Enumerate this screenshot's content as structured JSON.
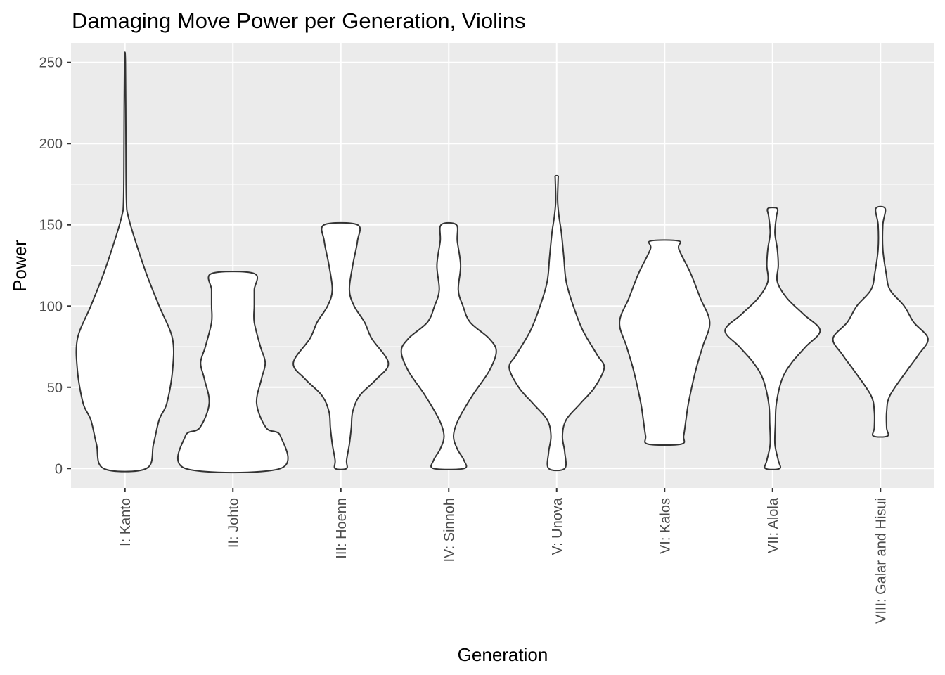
{
  "chart_data": {
    "type": "violin",
    "title": "Damaging Move Power per Generation, Violins",
    "xlabel": "Generation",
    "ylabel": "Power",
    "ylim": [
      -12,
      262
    ],
    "yticks": [
      0,
      50,
      100,
      150,
      200,
      250
    ],
    "grid": true,
    "legend": "none",
    "colors": {
      "panel": "#ebebeb",
      "grid_major": "#ffffff",
      "violin_fill": "#ffffff",
      "violin_stroke": "#333333",
      "tick_text": "#4d4d4d"
    },
    "categories": [
      "I: Kanto",
      "II: Johto",
      "III: Hoenn",
      "IV: Sinnoh",
      "V: Unova",
      "VI: Kalos",
      "VII: Alola",
      "VIII: Galar and Hisui"
    ],
    "violins": [
      {
        "name": "I: Kanto",
        "range": [
          0,
          250
        ],
        "profile": [
          [
            0,
            0.45
          ],
          [
            15,
            0.6
          ],
          [
            30,
            0.72
          ],
          [
            40,
            0.88
          ],
          [
            60,
            1.0
          ],
          [
            80,
            1.0
          ],
          [
            100,
            0.72
          ],
          [
            120,
            0.45
          ],
          [
            140,
            0.22
          ],
          [
            155,
            0.07
          ],
          [
            165,
            0.03
          ],
          [
            200,
            0.02
          ],
          [
            250,
            0.01
          ]
        ]
      },
      {
        "name": "II: Johto",
        "range": [
          0,
          120
        ],
        "profile": [
          [
            0,
            1.0
          ],
          [
            20,
            1.0
          ],
          [
            25,
            0.7
          ],
          [
            40,
            0.5
          ],
          [
            55,
            0.6
          ],
          [
            65,
            0.68
          ],
          [
            75,
            0.58
          ],
          [
            90,
            0.45
          ],
          [
            100,
            0.45
          ],
          [
            110,
            0.45
          ],
          [
            120,
            0.45
          ]
        ]
      },
      {
        "name": "III: Hoenn",
        "range": [
          0,
          150
        ],
        "profile": [
          [
            0,
            0.12
          ],
          [
            5,
            0.12
          ],
          [
            15,
            0.18
          ],
          [
            25,
            0.22
          ],
          [
            35,
            0.25
          ],
          [
            45,
            0.4
          ],
          [
            55,
            0.75
          ],
          [
            65,
            1.0
          ],
          [
            80,
            0.65
          ],
          [
            90,
            0.5
          ],
          [
            100,
            0.28
          ],
          [
            110,
            0.18
          ],
          [
            125,
            0.25
          ],
          [
            140,
            0.35
          ],
          [
            150,
            0.35
          ]
        ]
      },
      {
        "name": "IV: Sinnoh",
        "range": [
          0,
          150
        ],
        "profile": [
          [
            0,
            0.32
          ],
          [
            5,
            0.32
          ],
          [
            12,
            0.18
          ],
          [
            20,
            0.1
          ],
          [
            30,
            0.2
          ],
          [
            45,
            0.5
          ],
          [
            60,
            0.85
          ],
          [
            72,
            1.0
          ],
          [
            80,
            0.85
          ],
          [
            90,
            0.45
          ],
          [
            100,
            0.3
          ],
          [
            110,
            0.2
          ],
          [
            125,
            0.25
          ],
          [
            140,
            0.18
          ],
          [
            150,
            0.16
          ]
        ]
      },
      {
        "name": "V: Unova",
        "range": [
          0,
          180
        ],
        "profile": [
          [
            0,
            0.17
          ],
          [
            10,
            0.17
          ],
          [
            20,
            0.12
          ],
          [
            30,
            0.2
          ],
          [
            40,
            0.5
          ],
          [
            50,
            0.8
          ],
          [
            62,
            1.0
          ],
          [
            70,
            0.85
          ],
          [
            85,
            0.55
          ],
          [
            100,
            0.35
          ],
          [
            115,
            0.2
          ],
          [
            130,
            0.15
          ],
          [
            145,
            0.1
          ],
          [
            155,
            0.05
          ],
          [
            165,
            0.02
          ],
          [
            178,
            0.03
          ],
          [
            180,
            0.03
          ]
        ]
      },
      {
        "name": "VI: Kalos",
        "range": [
          15,
          140
        ],
        "profile": [
          [
            15,
            0.35
          ],
          [
            20,
            0.4
          ],
          [
            30,
            0.45
          ],
          [
            40,
            0.5
          ],
          [
            60,
            0.65
          ],
          [
            75,
            0.8
          ],
          [
            90,
            0.95
          ],
          [
            105,
            0.75
          ],
          [
            120,
            0.55
          ],
          [
            135,
            0.3
          ],
          [
            140,
            0.3
          ]
        ]
      },
      {
        "name": "VII: Alola",
        "range": [
          0,
          160
        ],
        "profile": [
          [
            0,
            0.15
          ],
          [
            5,
            0.12
          ],
          [
            15,
            0.05
          ],
          [
            28,
            0.06
          ],
          [
            40,
            0.08
          ],
          [
            55,
            0.2
          ],
          [
            65,
            0.4
          ],
          [
            75,
            0.7
          ],
          [
            85,
            1.0
          ],
          [
            95,
            0.65
          ],
          [
            105,
            0.3
          ],
          [
            115,
            0.1
          ],
          [
            125,
            0.12
          ],
          [
            135,
            0.1
          ],
          [
            145,
            0.05
          ],
          [
            155,
            0.08
          ],
          [
            160,
            0.1
          ]
        ]
      },
      {
        "name": "VIII: Galar and Hisui",
        "range": [
          20,
          160
        ],
        "profile": [
          [
            20,
            0.15
          ],
          [
            25,
            0.13
          ],
          [
            35,
            0.13
          ],
          [
            45,
            0.2
          ],
          [
            60,
            0.55
          ],
          [
            70,
            0.8
          ],
          [
            80,
            1.0
          ],
          [
            90,
            0.7
          ],
          [
            100,
            0.5
          ],
          [
            110,
            0.2
          ],
          [
            120,
            0.12
          ],
          [
            135,
            0.05
          ],
          [
            150,
            0.05
          ],
          [
            160,
            0.1
          ]
        ]
      }
    ]
  }
}
